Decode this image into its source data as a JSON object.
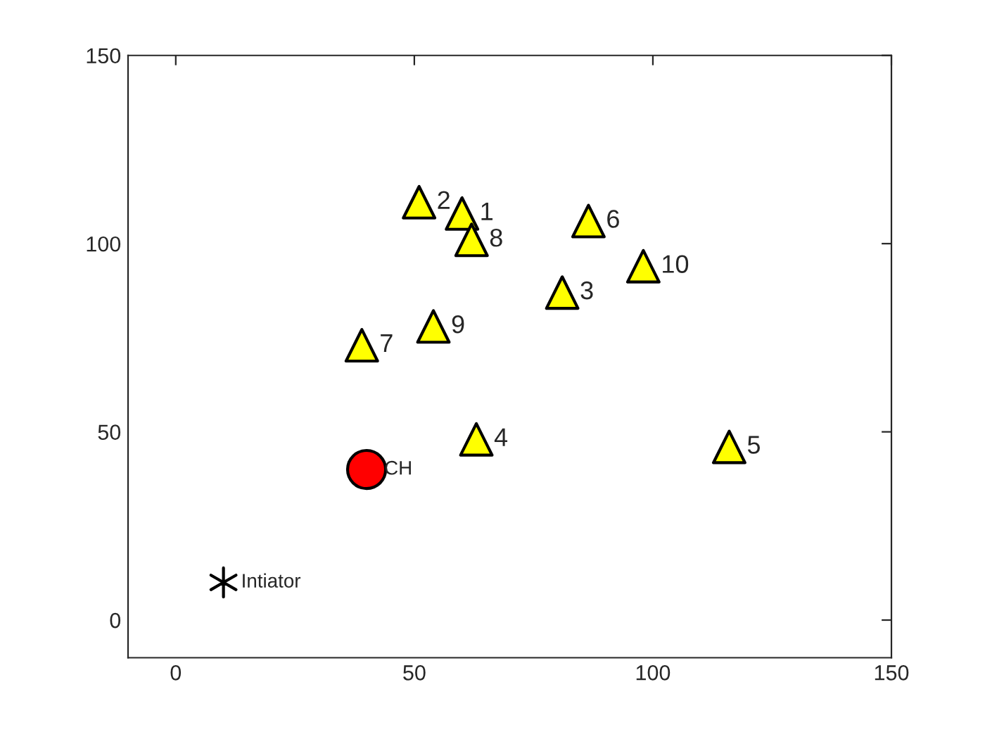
{
  "chart_data": {
    "type": "scatter",
    "xlim": [
      -10,
      150
    ],
    "ylim": [
      -10,
      150
    ],
    "xticks": [
      0,
      50,
      100,
      150
    ],
    "yticks": [
      0,
      50,
      100,
      150
    ],
    "grid": false,
    "legend": false,
    "series": [
      {
        "x": [
          60,
          51,
          81,
          63,
          116,
          86.5,
          39,
          62,
          54,
          98
        ],
        "values": [
          108,
          111,
          87,
          48,
          46,
          106,
          73,
          101,
          78,
          94
        ],
        "color": "#ffff00",
        "marker": "triangle"
      },
      {
        "x": [
          40
        ],
        "values": [
          40
        ],
        "color": "#ff0000",
        "marker": "circle"
      },
      {
        "x": [
          10
        ],
        "values": [
          10
        ],
        "color": "#000000",
        "marker": "cross"
      }
    ],
    "annotations": [
      {
        "text": "1",
        "x": 60,
        "y": 108
      },
      {
        "text": "2",
        "x": 51,
        "y": 111
      },
      {
        "text": "3",
        "x": 81,
        "y": 87
      },
      {
        "text": "4",
        "x": 63,
        "y": 48
      },
      {
        "text": "5",
        "x": 116,
        "y": 46
      },
      {
        "text": "6",
        "x": 86.5,
        "y": 106
      },
      {
        "text": "7",
        "x": 39,
        "y": 73
      },
      {
        "text": "8",
        "x": 62,
        "y": 101
      },
      {
        "text": "9",
        "x": 54,
        "y": 78
      },
      {
        "text": "10",
        "x": 98,
        "y": 94
      },
      {
        "text": "CH",
        "x": 40,
        "y": 40
      },
      {
        "text": "Intiator",
        "x": 10,
        "y": 10
      }
    ]
  }
}
